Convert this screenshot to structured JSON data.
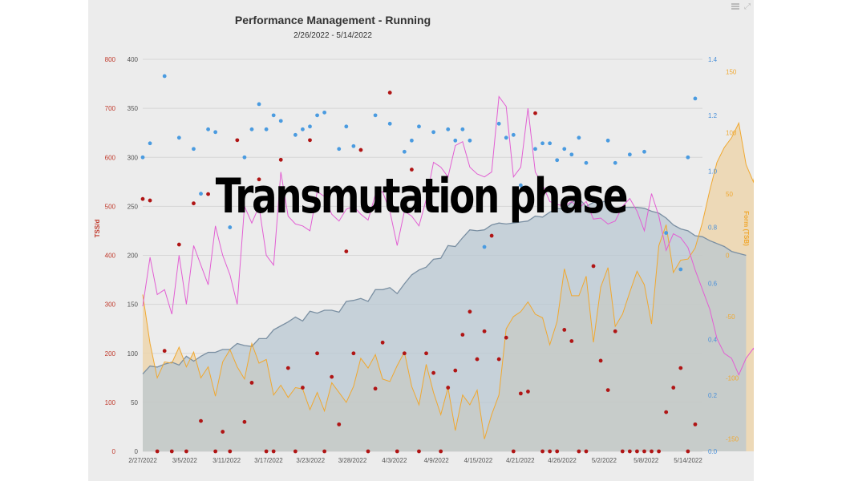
{
  "overlay_text": "Transmutation phase",
  "icons": {
    "menu": "hamburger-menu-icon",
    "expand": "expand-icon"
  },
  "colors": {
    "tss_axis": "#c0392b",
    "ctl_fill": "#b7c6d2",
    "ctl_line": "#7a8fa2",
    "ramp": "#e25fd3",
    "form_line": "#f0a830",
    "form_fill": "#eed3a6",
    "if_dots": "#4a9be0",
    "tss_dots": "#b01515",
    "if_axis": "#4a90d9",
    "form_axis": "#f0a830"
  },
  "chart_data": {
    "type": "line",
    "title": "Performance Management - Running",
    "subtitle": "2/26/2022 - 5/14/2022",
    "x_tick_labels": [
      "2/27/2022",
      "3/5/2022",
      "3/11/2022",
      "3/17/2022",
      "3/23/2022",
      "3/28/2022",
      "4/3/2022",
      "4/9/2022",
      "4/15/2022",
      "4/21/2022",
      "4/26/2022",
      "5/2/2022",
      "5/8/2022",
      "5/14/2022"
    ],
    "axes": {
      "tss": {
        "label": "TSS/d",
        "ticks": [
          "0",
          "100",
          "200",
          "300",
          "400",
          "500",
          "600",
          "700",
          "800"
        ],
        "range": [
          0,
          800
        ]
      },
      "ctl": {
        "ticks": [
          "0",
          "50",
          "100",
          "150",
          "200",
          "250",
          "300",
          "350",
          "400"
        ],
        "range": [
          0,
          400
        ]
      },
      "if": {
        "ticks": [
          "0.0",
          "0.2",
          "0.4",
          "0.6",
          "0.8",
          "1.0",
          "1.2",
          "1.4"
        ],
        "range": [
          0,
          1.4
        ]
      },
      "form": {
        "label": "Form (TSB)",
        "ticks": [
          "150",
          "100",
          "50",
          "0",
          "-50",
          "-100",
          "-150"
        ],
        "range": [
          -160,
          160
        ]
      }
    },
    "series": [
      {
        "kind": "ctl",
        "values": [
          79,
          87,
          86,
          89,
          91,
          88,
          97,
          92,
          97,
          101,
          101,
          104,
          104,
          110,
          108,
          107,
          115,
          115,
          124,
          128,
          132,
          137,
          133,
          143,
          141,
          144,
          144,
          142,
          153,
          154,
          156,
          153,
          165,
          165,
          167,
          161,
          171,
          180,
          185,
          188,
          196,
          197,
          210,
          209,
          218,
          226,
          225,
          226,
          231,
          233,
          232,
          233,
          234,
          235,
          240,
          239,
          244,
          248,
          247,
          254,
          258,
          250,
          254,
          254,
          256,
          247,
          249,
          249,
          249,
          248,
          245,
          243,
          238,
          231,
          227,
          225,
          220,
          219,
          215,
          212,
          209,
          204,
          202,
          200
        ]
      },
      {
        "kind": "ramp",
        "values": [
          148,
          198,
          160,
          165,
          140,
          200,
          150,
          210,
          190,
          170,
          230,
          200,
          180,
          150,
          250,
          233,
          250,
          200,
          190,
          285,
          240,
          232,
          230,
          225,
          265,
          260,
          242,
          235,
          247,
          250,
          242,
          236,
          262,
          265,
          245,
          210,
          245,
          240,
          230,
          257,
          295,
          290,
          280,
          312,
          316,
          290,
          283,
          280,
          285,
          362,
          352,
          280,
          290,
          350,
          285,
          272,
          255,
          252,
          250,
          255,
          248,
          255,
          237,
          238,
          232,
          235,
          250,
          258,
          245,
          225,
          263,
          240,
          205,
          222,
          218,
          208,
          185,
          165,
          145,
          115,
          100,
          95,
          78,
          95,
          105,
          90,
          85
        ]
      },
      {
        "kind": "form",
        "values": [
          -32,
          -72,
          -100,
          -87,
          -88,
          -75,
          -91,
          -79,
          -100,
          -91,
          -115,
          -87,
          -77,
          -91,
          -101,
          -72,
          -88,
          -85,
          -114,
          -106,
          -116,
          -108,
          -109,
          -126,
          -112,
          -127,
          -104,
          -112,
          -120,
          -107,
          -84,
          -92,
          -81,
          -101,
          -103,
          -90,
          -79,
          -107,
          -122,
          -89,
          -112,
          -130,
          -108,
          -143,
          -114,
          -122,
          -110,
          -150,
          -130,
          -114,
          -60,
          -50,
          -46,
          -38,
          -48,
          -51,
          -73,
          -54,
          -11,
          -33,
          -33,
          -17,
          -71,
          -26,
          -10,
          -58,
          -48,
          -30,
          -13,
          -24,
          -56,
          8,
          25,
          -14,
          -4,
          -3,
          6,
          27,
          53,
          76,
          88,
          96,
          108,
          74,
          60,
          88,
          90,
          100
        ]
      },
      {
        "kind": "if_dots",
        "points": [
          [
            0,
            1.05
          ],
          [
            1,
            1.1
          ],
          [
            3,
            1.34
          ],
          [
            5,
            1.12
          ],
          [
            7,
            1.08
          ],
          [
            8,
            0.92
          ],
          [
            9,
            1.15
          ],
          [
            10,
            1.14
          ],
          [
            12,
            0.8
          ],
          [
            14,
            1.05
          ],
          [
            15,
            1.15
          ],
          [
            16,
            1.24
          ],
          [
            17,
            1.15
          ],
          [
            18,
            1.2
          ],
          [
            19,
            1.18
          ],
          [
            21,
            1.13
          ],
          [
            22,
            1.15
          ],
          [
            23,
            1.16
          ],
          [
            24,
            1.2
          ],
          [
            25,
            1.21
          ],
          [
            27,
            1.08
          ],
          [
            28,
            1.16
          ],
          [
            29,
            1.09
          ],
          [
            32,
            1.2
          ],
          [
            34,
            1.17
          ],
          [
            36,
            1.07
          ],
          [
            37,
            1.11
          ],
          [
            38,
            1.16
          ],
          [
            40,
            1.14
          ],
          [
            42,
            1.15
          ],
          [
            43,
            1.11
          ],
          [
            44,
            1.15
          ],
          [
            45,
            1.11
          ],
          [
            47,
            0.73
          ],
          [
            49,
            1.17
          ],
          [
            50,
            1.12
          ],
          [
            51,
            1.13
          ],
          [
            52,
            0.95
          ],
          [
            54,
            1.08
          ],
          [
            55,
            1.1
          ],
          [
            56,
            1.1
          ],
          [
            57,
            1.04
          ],
          [
            58,
            1.08
          ],
          [
            59,
            1.06
          ],
          [
            60,
            1.12
          ],
          [
            61,
            1.03
          ],
          [
            64,
            1.11
          ],
          [
            65,
            1.03
          ],
          [
            67,
            1.06
          ],
          [
            69,
            1.07
          ],
          [
            72,
            0.78
          ],
          [
            74,
            0.65
          ],
          [
            75,
            1.05
          ],
          [
            76,
            1.26
          ]
        ]
      },
      {
        "kind": "tss_dots",
        "points": [
          [
            0,
            515
          ],
          [
            1,
            512
          ],
          [
            2,
            0
          ],
          [
            3,
            205
          ],
          [
            4,
            0
          ],
          [
            5,
            422
          ],
          [
            6,
            0
          ],
          [
            7,
            506
          ],
          [
            8,
            62
          ],
          [
            9,
            525
          ],
          [
            10,
            0
          ],
          [
            11,
            40
          ],
          [
            12,
            0
          ],
          [
            13,
            635
          ],
          [
            14,
            60
          ],
          [
            15,
            140
          ],
          [
            16,
            555
          ],
          [
            17,
            0
          ],
          [
            18,
            0
          ],
          [
            19,
            595
          ],
          [
            20,
            170
          ],
          [
            21,
            0
          ],
          [
            22,
            130
          ],
          [
            23,
            635
          ],
          [
            24,
            200
          ],
          [
            25,
            0
          ],
          [
            26,
            152
          ],
          [
            27,
            55
          ],
          [
            28,
            408
          ],
          [
            29,
            200
          ],
          [
            30,
            615
          ],
          [
            31,
            0
          ],
          [
            32,
            128
          ],
          [
            33,
            222
          ],
          [
            34,
            732
          ],
          [
            35,
            0
          ],
          [
            36,
            200
          ],
          [
            37,
            575
          ],
          [
            38,
            0
          ],
          [
            39,
            200
          ],
          [
            40,
            160
          ],
          [
            41,
            0
          ],
          [
            42,
            130
          ],
          [
            43,
            165
          ],
          [
            44,
            238
          ],
          [
            45,
            285
          ],
          [
            46,
            188
          ],
          [
            47,
            245
          ],
          [
            48,
            440
          ],
          [
            49,
            188
          ],
          [
            50,
            232
          ],
          [
            51,
            0
          ],
          [
            52,
            118
          ],
          [
            53,
            122
          ],
          [
            54,
            690
          ],
          [
            55,
            0
          ],
          [
            56,
            0
          ],
          [
            57,
            0
          ],
          [
            58,
            248
          ],
          [
            59,
            225
          ],
          [
            60,
            0
          ],
          [
            61,
            0
          ],
          [
            62,
            378
          ],
          [
            63,
            185
          ],
          [
            64,
            125
          ],
          [
            65,
            245
          ],
          [
            66,
            0
          ],
          [
            67,
            0
          ],
          [
            68,
            0
          ],
          [
            69,
            0
          ],
          [
            70,
            0
          ],
          [
            71,
            0
          ],
          [
            72,
            80
          ],
          [
            73,
            130
          ],
          [
            74,
            170
          ],
          [
            75,
            0
          ],
          [
            76,
            55
          ]
        ]
      }
    ]
  }
}
